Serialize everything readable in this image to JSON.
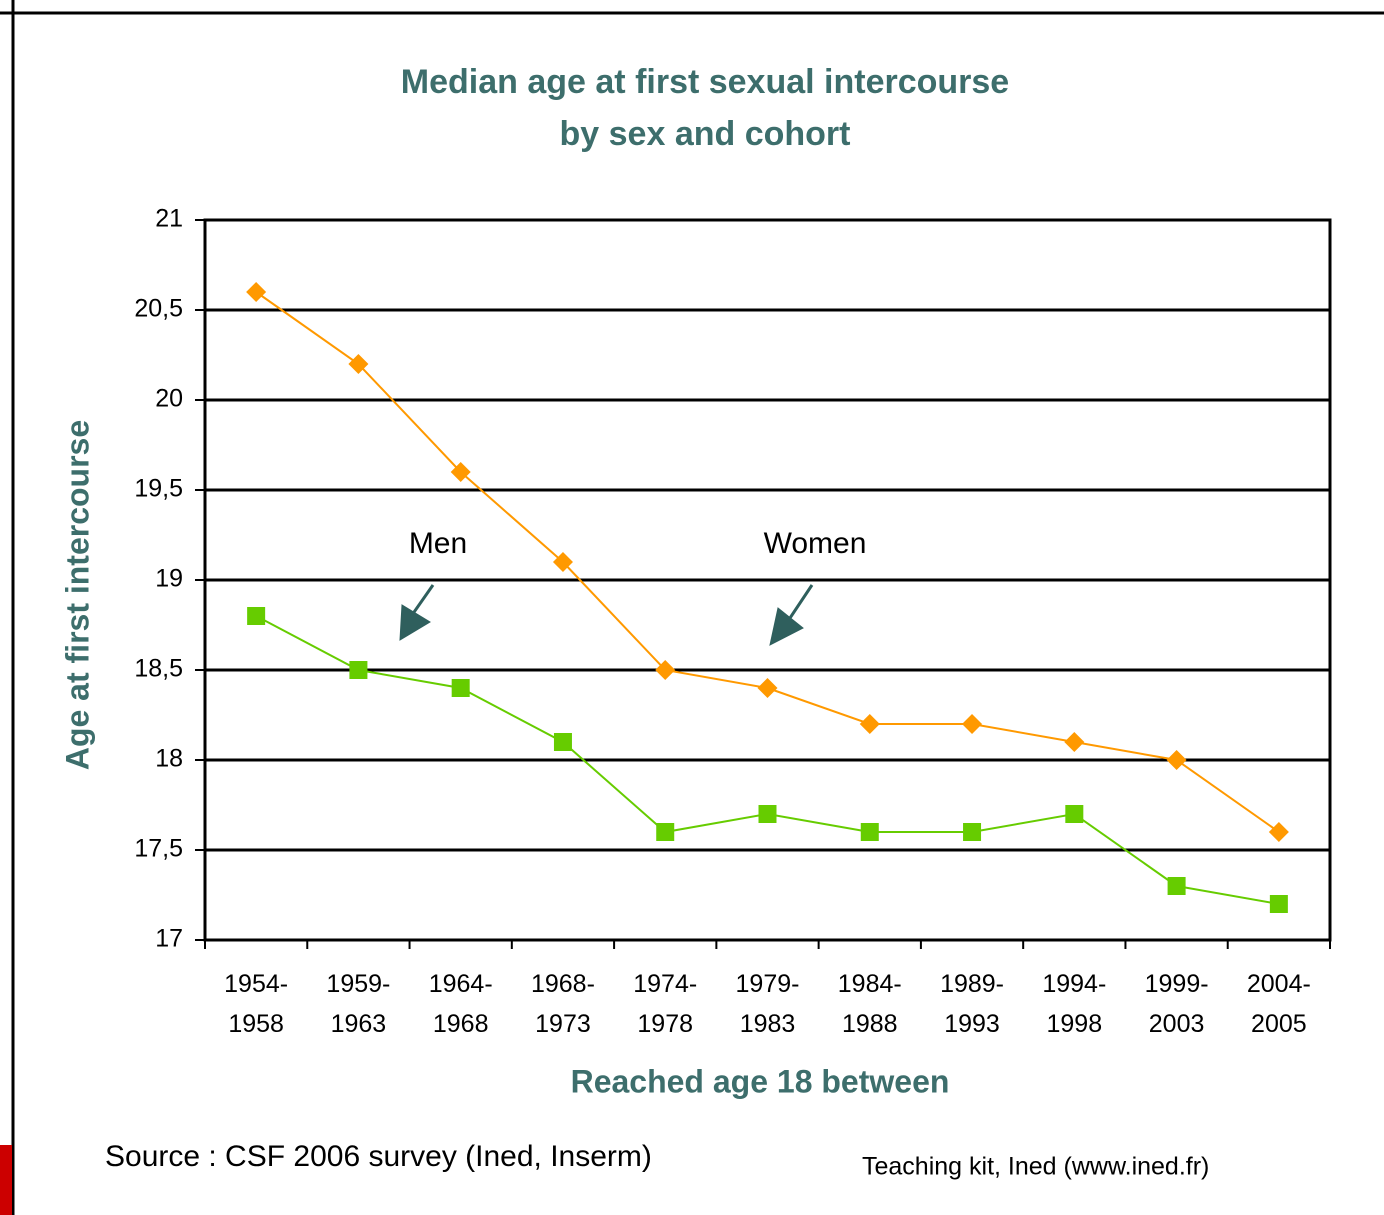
{
  "chart_data": {
    "type": "line",
    "title": [
      "Median age at first sexual intercourse",
      "by sex and cohort"
    ],
    "x_label": "Reached age 18 between",
    "y_label": "Age at first intercourse",
    "categories": [
      "1954-1958",
      "1959-1963",
      "1964-1968",
      "1968-1973",
      "1974-1978",
      "1979-1983",
      "1984-1988",
      "1989-1993",
      "1994-1998",
      "1999-2003",
      "2004-2005"
    ],
    "series": [
      {
        "name": "Men",
        "color": "#66cc00",
        "marker": "square",
        "values": [
          18.8,
          18.5,
          18.4,
          18.1,
          17.6,
          17.7,
          17.6,
          17.6,
          17.7,
          17.3,
          17.2
        ]
      },
      {
        "name": "Women",
        "color": "#ff9900",
        "marker": "diamond",
        "values": [
          20.6,
          20.2,
          19.6,
          19.1,
          18.5,
          18.4,
          18.2,
          18.2,
          18.1,
          18.0,
          17.6
        ]
      }
    ],
    "ylim": [
      17,
      21
    ],
    "yticks": [
      17,
      {
        "value": 17.5,
        "label": "17,5"
      },
      18,
      {
        "value": 18.5,
        "label": "18,5"
      },
      19,
      {
        "value": 19.5,
        "label": "19,5"
      },
      20,
      {
        "value": 20.5,
        "label": "20,5"
      },
      21
    ],
    "grid": true,
    "source": "Source : CSF 2006 survey (Ined, Inserm)",
    "credit": "Teaching kit, Ined (www.ined.fr)"
  }
}
